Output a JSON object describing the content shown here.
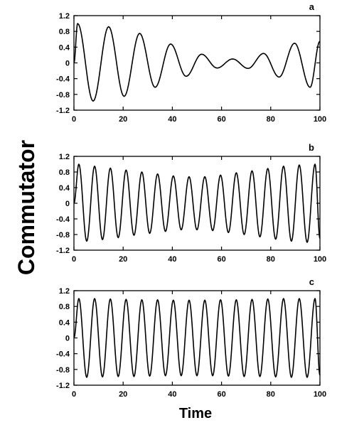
{
  "figure": {
    "ylabel": "Commutator",
    "xlabel": "Time"
  },
  "chart_data": [
    {
      "type": "line",
      "panel_label": "a",
      "xlim": [
        0,
        100
      ],
      "ylim": [
        -1.2,
        1.2
      ],
      "x_ticks": [
        0,
        20,
        40,
        60,
        80,
        100
      ],
      "y_ticks": [
        1.2,
        0.8,
        0.4,
        0,
        -0.4,
        -0.8,
        -1.2
      ],
      "grid": false,
      "series": [
        {
          "peaks": [
            [
              1.5,
              1.0
            ],
            [
              7.8,
              -0.97
            ],
            [
              14.1,
              0.92
            ],
            [
              20.4,
              -0.85
            ],
            [
              26.7,
              0.75
            ],
            [
              33.0,
              -0.62
            ],
            [
              39.3,
              0.48
            ],
            [
              45.6,
              -0.34
            ],
            [
              51.9,
              0.22
            ],
            [
              58.2,
              -0.13
            ],
            [
              64.5,
              0.1
            ],
            [
              70.8,
              -0.14
            ],
            [
              77.1,
              0.24
            ],
            [
              83.4,
              -0.36
            ],
            [
              89.7,
              0.5
            ],
            [
              96.0,
              -0.62
            ],
            [
              100,
              0.55
            ]
          ]
        }
      ]
    },
    {
      "type": "line",
      "panel_label": "b",
      "xlim": [
        0,
        100
      ],
      "ylim": [
        -1.2,
        1.2
      ],
      "x_ticks": [
        0,
        20,
        40,
        60,
        80,
        100
      ],
      "y_ticks": [
        1.2,
        0.8,
        0.4,
        0,
        -0.4,
        -0.8,
        -1.2
      ],
      "grid": false,
      "series": [
        {
          "peaks": [
            [
              2.0,
              1.0
            ],
            [
              5.2,
              -0.97
            ],
            [
              8.4,
              0.95
            ],
            [
              11.6,
              -0.93
            ],
            [
              14.8,
              0.9
            ],
            [
              18.0,
              -0.88
            ],
            [
              21.2,
              0.85
            ],
            [
              24.4,
              -0.82
            ],
            [
              27.6,
              0.8
            ],
            [
              30.8,
              -0.77
            ],
            [
              34.0,
              0.75
            ],
            [
              37.2,
              -0.72
            ],
            [
              40.4,
              0.7
            ],
            [
              43.6,
              -0.68
            ],
            [
              46.8,
              0.68
            ],
            [
              50.0,
              -0.68
            ],
            [
              53.2,
              0.68
            ],
            [
              56.4,
              -0.7
            ],
            [
              59.6,
              0.72
            ],
            [
              62.8,
              -0.75
            ],
            [
              66.0,
              0.78
            ],
            [
              69.2,
              -0.8
            ],
            [
              72.4,
              0.83
            ],
            [
              75.6,
              -0.86
            ],
            [
              78.8,
              0.89
            ],
            [
              82.0,
              -0.92
            ],
            [
              85.2,
              0.95
            ],
            [
              88.4,
              -0.97
            ],
            [
              91.6,
              0.98
            ],
            [
              94.8,
              -1.0
            ],
            [
              98.0,
              1.0
            ],
            [
              100,
              -0.9
            ]
          ]
        }
      ]
    },
    {
      "type": "line",
      "panel_label": "c",
      "xlim": [
        0,
        100
      ],
      "ylim": [
        -1.2,
        1.2
      ],
      "x_ticks": [
        0,
        20,
        40,
        60,
        80,
        100
      ],
      "y_ticks": [
        1.2,
        0.8,
        0.4,
        0,
        -0.4,
        -0.8,
        -1.2
      ],
      "grid": false,
      "series": [
        {
          "peaks": [
            [
              2.0,
              1.0
            ],
            [
              5.2,
              -1.0
            ],
            [
              8.4,
              1.0
            ],
            [
              11.6,
              -0.99
            ],
            [
              14.8,
              0.99
            ],
            [
              18.0,
              -0.98
            ],
            [
              21.2,
              0.98
            ],
            [
              24.4,
              -0.98
            ],
            [
              27.6,
              0.97
            ],
            [
              30.8,
              -0.97
            ],
            [
              34.0,
              0.97
            ],
            [
              37.2,
              -0.96
            ],
            [
              40.4,
              0.96
            ],
            [
              43.6,
              -0.96
            ],
            [
              46.8,
              0.96
            ],
            [
              50.0,
              -0.96
            ],
            [
              53.2,
              0.96
            ],
            [
              56.4,
              -0.96
            ],
            [
              59.6,
              0.97
            ],
            [
              62.8,
              -0.97
            ],
            [
              66.0,
              0.97
            ],
            [
              69.2,
              -0.98
            ],
            [
              72.4,
              0.98
            ],
            [
              75.6,
              -0.98
            ],
            [
              78.8,
              0.99
            ],
            [
              82.0,
              -0.99
            ],
            [
              85.2,
              1.0
            ],
            [
              88.4,
              -1.0
            ],
            [
              91.6,
              1.0
            ],
            [
              94.8,
              -1.0
            ],
            [
              98.0,
              1.0
            ],
            [
              100,
              -0.95
            ]
          ]
        }
      ]
    }
  ]
}
